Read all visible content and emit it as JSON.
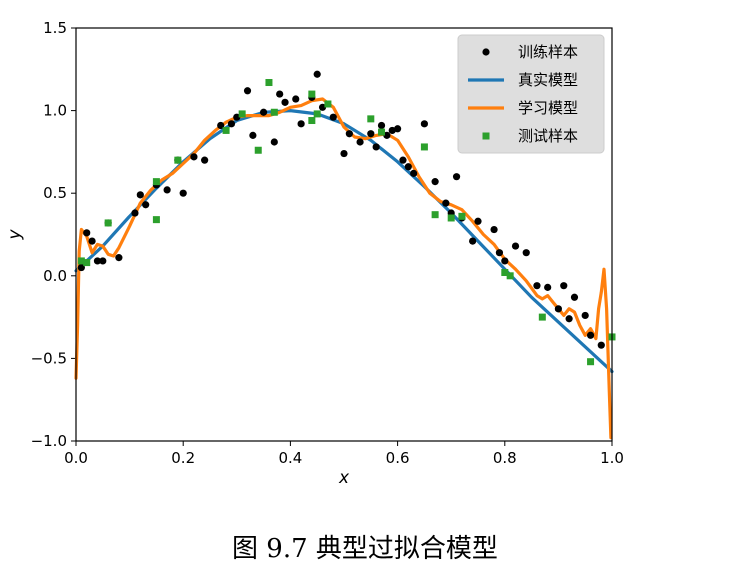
{
  "caption": "图 9.7 典型过拟合模型",
  "chart_data": {
    "type": "scatter",
    "xlabel": "x",
    "ylabel": "y",
    "xlim": [
      0.0,
      1.0
    ],
    "ylim": [
      -1.0,
      1.5
    ],
    "xticks": [
      "0.0",
      "0.2",
      "0.4",
      "0.6",
      "0.8",
      "1.0"
    ],
    "yticks": [
      "-1.0",
      "-0.5",
      "0.0",
      "0.5",
      "1.0",
      "1.5"
    ],
    "grid": false,
    "legend_position": "top-right",
    "colors": {
      "train": "#000000",
      "true": "#1f77b4",
      "learned": "#ff7f0e",
      "test": "#2ca02c"
    },
    "series": [
      {
        "name": "训练样本",
        "kind": "scatter",
        "marker": "circle",
        "x": [
          0.01,
          0.02,
          0.03,
          0.04,
          0.05,
          0.06,
          0.08,
          0.11,
          0.12,
          0.13,
          0.15,
          0.17,
          0.19,
          0.2,
          0.22,
          0.24,
          0.27,
          0.29,
          0.3,
          0.32,
          0.33,
          0.35,
          0.37,
          0.38,
          0.39,
          0.41,
          0.42,
          0.44,
          0.45,
          0.46,
          0.48,
          0.5,
          0.51,
          0.53,
          0.55,
          0.56,
          0.57,
          0.58,
          0.59,
          0.6,
          0.61,
          0.62,
          0.63,
          0.65,
          0.67,
          0.69,
          0.7,
          0.71,
          0.72,
          0.74,
          0.75,
          0.78,
          0.79,
          0.8,
          0.82,
          0.84,
          0.86,
          0.88,
          0.9,
          0.91,
          0.92,
          0.93,
          0.95,
          0.96,
          0.98
        ],
        "y": [
          0.05,
          0.26,
          0.21,
          0.09,
          0.09,
          0.32,
          0.11,
          0.38,
          0.49,
          0.43,
          0.55,
          0.52,
          0.7,
          0.5,
          0.72,
          0.7,
          0.91,
          0.92,
          0.96,
          1.12,
          0.85,
          0.99,
          0.81,
          1.1,
          1.05,
          1.07,
          0.92,
          1.08,
          1.22,
          1.02,
          0.96,
          0.74,
          0.86,
          0.81,
          0.86,
          0.78,
          0.91,
          0.85,
          0.88,
          0.89,
          0.7,
          0.66,
          0.62,
          0.92,
          0.57,
          0.44,
          0.38,
          0.6,
          0.35,
          0.21,
          0.33,
          0.28,
          0.14,
          0.09,
          0.18,
          0.14,
          -0.06,
          -0.07,
          -0.2,
          -0.06,
          -0.26,
          -0.13,
          -0.24,
          -0.36,
          -0.42
        ]
      },
      {
        "name": "真实模型",
        "kind": "line",
        "x": [
          0.0,
          0.05,
          0.1,
          0.15,
          0.2,
          0.25,
          0.3,
          0.35,
          0.4,
          0.45,
          0.5,
          0.55,
          0.6,
          0.65,
          0.7,
          0.75,
          0.8,
          0.85,
          0.9,
          0.95,
          1.0
        ],
        "y": [
          0.03,
          0.18,
          0.36,
          0.53,
          0.69,
          0.83,
          0.94,
          0.99,
          1.0,
          0.98,
          0.92,
          0.82,
          0.69,
          0.54,
          0.38,
          0.21,
          0.04,
          -0.13,
          -0.28,
          -0.43,
          -0.58
        ]
      },
      {
        "name": "学习模型",
        "kind": "line",
        "x": [
          0.0,
          0.003,
          0.006,
          0.01,
          0.02,
          0.03,
          0.04,
          0.05,
          0.06,
          0.07,
          0.08,
          0.1,
          0.12,
          0.14,
          0.16,
          0.18,
          0.2,
          0.22,
          0.24,
          0.26,
          0.28,
          0.3,
          0.32,
          0.34,
          0.36,
          0.38,
          0.4,
          0.42,
          0.44,
          0.46,
          0.48,
          0.5,
          0.52,
          0.54,
          0.56,
          0.58,
          0.6,
          0.62,
          0.64,
          0.66,
          0.68,
          0.7,
          0.72,
          0.74,
          0.76,
          0.78,
          0.8,
          0.82,
          0.84,
          0.86,
          0.87,
          0.88,
          0.89,
          0.9,
          0.91,
          0.92,
          0.93,
          0.94,
          0.95,
          0.96,
          0.97,
          0.975,
          0.98,
          0.985,
          0.99,
          0.995,
          0.998
        ],
        "y": [
          -0.62,
          -0.3,
          0.15,
          0.28,
          0.24,
          0.14,
          0.19,
          0.18,
          0.13,
          0.12,
          0.17,
          0.3,
          0.44,
          0.52,
          0.58,
          0.62,
          0.68,
          0.74,
          0.82,
          0.88,
          0.93,
          0.96,
          0.97,
          0.97,
          0.97,
          0.99,
          1.02,
          1.03,
          1.06,
          1.07,
          1.02,
          0.9,
          0.84,
          0.83,
          0.85,
          0.86,
          0.82,
          0.72,
          0.6,
          0.5,
          0.45,
          0.43,
          0.4,
          0.33,
          0.25,
          0.19,
          0.1,
          0.04,
          -0.03,
          -0.12,
          -0.14,
          -0.12,
          -0.16,
          -0.2,
          -0.24,
          -0.2,
          -0.22,
          -0.3,
          -0.36,
          -0.32,
          -0.38,
          -0.2,
          -0.1,
          0.04,
          -0.2,
          -0.7,
          -0.98
        ]
      },
      {
        "name": "测试样本",
        "kind": "scatter",
        "marker": "square",
        "x": [
          0.01,
          0.02,
          0.06,
          0.15,
          0.15,
          0.19,
          0.28,
          0.31,
          0.34,
          0.36,
          0.37,
          0.44,
          0.44,
          0.45,
          0.47,
          0.55,
          0.57,
          0.65,
          0.67,
          0.7,
          0.72,
          0.8,
          0.81,
          0.87,
          0.96,
          1.0
        ],
        "y": [
          0.09,
          0.08,
          0.32,
          0.34,
          0.57,
          0.7,
          0.88,
          0.98,
          0.76,
          1.17,
          0.99,
          0.94,
          1.1,
          0.98,
          1.04,
          0.95,
          0.87,
          0.78,
          0.37,
          0.35,
          0.36,
          0.02,
          0.0,
          -0.25,
          -0.52,
          -0.37
        ]
      }
    ]
  }
}
